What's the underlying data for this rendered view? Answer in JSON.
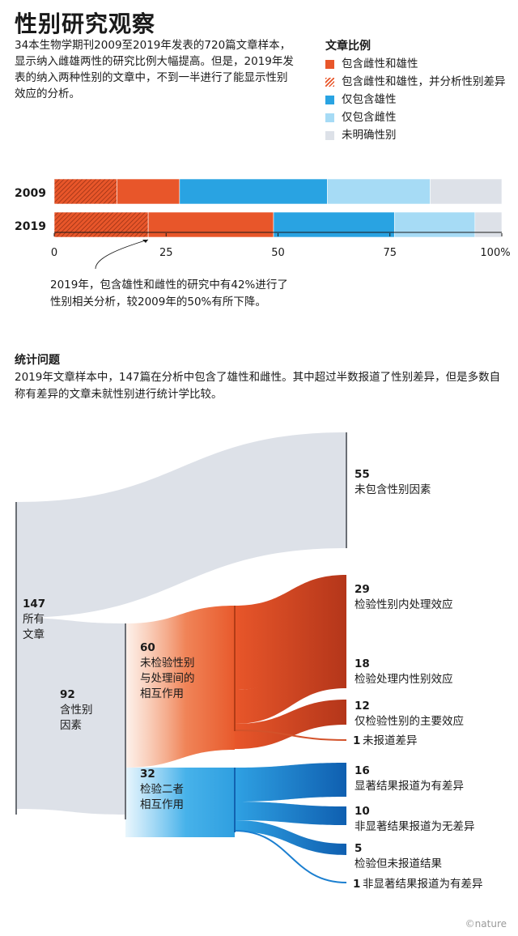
{
  "title": "性别研究观察",
  "intro": "34本生物学期刊2009至2019年发表的720篇文章样本，显示纳入雌雄两性的研究比例大幅提高。但是，2019年发表的纳入两种性别的文章中，不到一半进行了能显示性别效应的分析。",
  "legend": {
    "title": "文章比例",
    "items": [
      {
        "label": "包含雌性和雄性",
        "color": "#e8562a",
        "pattern": false
      },
      {
        "label": "包含雌性和雄性，并分析性别差异",
        "color": "#e8562a",
        "pattern": true
      },
      {
        "label": "仅包含雄性",
        "color": "#29a3e2",
        "pattern": false
      },
      {
        "label": "仅包含雌性",
        "color": "#a6dbf5",
        "pattern": false
      },
      {
        "label": "未明确性别",
        "color": "#dde1e8",
        "pattern": false
      }
    ]
  },
  "annotation": "2019年，包含雄性和雌性的研究中有42%进行了性别相关分析，较2009年的50%有所下降。",
  "chart_data": [
    {
      "type": "bar",
      "orientation": "horizontal",
      "stacked": true,
      "categories": [
        "2009",
        "2019"
      ],
      "xlim": [
        0,
        100
      ],
      "x_ticks": [
        "0",
        "25",
        "50",
        "75",
        "100%"
      ],
      "series": [
        {
          "name": "包含雌性和雄性，并分析性别差异",
          "values": [
            14,
            21
          ],
          "pattern": true,
          "color": "#e8562a"
        },
        {
          "name": "包含雌性和雄性",
          "values": [
            14,
            28
          ],
          "pattern": false,
          "color": "#e8562a"
        },
        {
          "name": "仅包含雄性",
          "values": [
            33,
            27
          ],
          "color": "#29a3e2"
        },
        {
          "name": "仅包含雌性",
          "values": [
            23,
            18
          ],
          "color": "#a6dbf5"
        },
        {
          "name": "未明确性别",
          "values": [
            16,
            6
          ],
          "color": "#dde1e8"
        }
      ]
    },
    {
      "type": "sankey",
      "title": "统计问题",
      "subtitle": "2019年文章样本中，147篇在分析中包含了雄性和雌性。其中超过半数报道了性别差异，但是多数自称有差异的文章未就性别进行统计学比较。",
      "nodes": [
        {
          "id": "all",
          "value": "147",
          "label": "所有文章"
        },
        {
          "id": "none",
          "value": "55",
          "label": "未包含性别因素"
        },
        {
          "id": "sex",
          "value": "92",
          "label": "含性别因素"
        },
        {
          "id": "notest",
          "value": "60",
          "label": "未检验性别与处理间的相互作用"
        },
        {
          "id": "test",
          "value": "32",
          "label": "检验二者相互作用"
        },
        {
          "id": "a1",
          "value": "29",
          "label": "检验性别内处理效应"
        },
        {
          "id": "a2",
          "value": "18",
          "label": "检验处理内性别效应"
        },
        {
          "id": "a3",
          "value": "12",
          "label": "仅检验性别的主要效应"
        },
        {
          "id": "a4",
          "value": "1",
          "label": "未报道差异"
        },
        {
          "id": "b1",
          "value": "16",
          "label": "显著结果报道为有差异"
        },
        {
          "id": "b2",
          "value": "10",
          "label": "非显著结果报道为无差异"
        },
        {
          "id": "b3",
          "value": "5",
          "label": "检验但未报道结果"
        },
        {
          "id": "b4",
          "value": "1",
          "label": "非显著结果报道为有差异"
        }
      ],
      "links": [
        {
          "from": "all",
          "to": "none",
          "value": 55
        },
        {
          "from": "all",
          "to": "sex",
          "value": 92
        },
        {
          "from": "sex",
          "to": "notest",
          "value": 60
        },
        {
          "from": "sex",
          "to": "test",
          "value": 32
        },
        {
          "from": "notest",
          "to": "a1",
          "value": 29
        },
        {
          "from": "notest",
          "to": "a2",
          "value": 18
        },
        {
          "from": "notest",
          "to": "a3",
          "value": 12
        },
        {
          "from": "notest",
          "to": "a4",
          "value": 1
        },
        {
          "from": "test",
          "to": "b1",
          "value": 16
        },
        {
          "from": "test",
          "to": "b2",
          "value": 10
        },
        {
          "from": "test",
          "to": "b3",
          "value": 5
        },
        {
          "from": "test",
          "to": "b4",
          "value": 1
        }
      ]
    }
  ],
  "credit": "©nature"
}
